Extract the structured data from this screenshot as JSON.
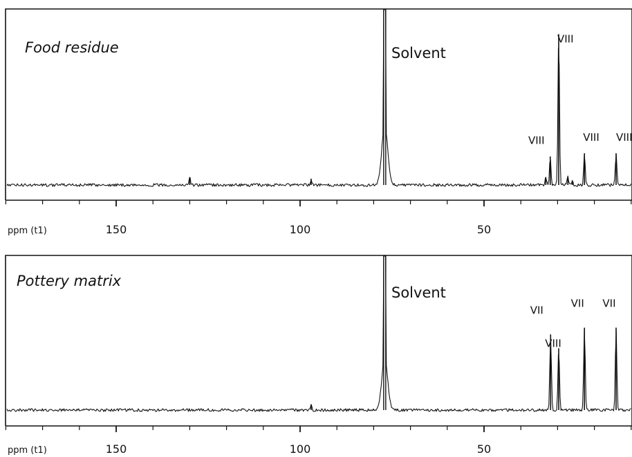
{
  "chart_data": [
    {
      "type": "line",
      "title": "Food residue",
      "xlabel": "ppm (t1)",
      "x_reversed": true,
      "xlim": [
        185,
        -4
      ],
      "x_ticks": [
        150,
        100,
        50
      ],
      "solvent": {
        "label": "Solvent",
        "ppm": 77
      },
      "peaks": [
        {
          "ppm": 32.0,
          "height": 0.18,
          "label": "VIII"
        },
        {
          "ppm": 29.7,
          "height": 0.95,
          "label": "VIII"
        },
        {
          "ppm": 22.7,
          "height": 0.2,
          "label": "VIII"
        },
        {
          "ppm": 14.1,
          "height": 0.2,
          "label": "VIII"
        },
        {
          "ppm": 33.2,
          "height": 0.05,
          "label": ""
        },
        {
          "ppm": 27.2,
          "height": 0.05,
          "label": ""
        },
        {
          "ppm": 26.0,
          "height": 0.03,
          "label": ""
        },
        {
          "ppm": 130.0,
          "height": 0.05,
          "label": ""
        },
        {
          "ppm": 97.0,
          "height": 0.04,
          "label": ""
        }
      ]
    },
    {
      "type": "line",
      "title": "Pottery matrix",
      "xlabel": "ppm (t1)",
      "x_reversed": true,
      "xlim": [
        185,
        -4
      ],
      "x_ticks": [
        150,
        100,
        50
      ],
      "solvent": {
        "label": "Solvent",
        "ppm": 77
      },
      "peaks": [
        {
          "ppm": 31.9,
          "height": 0.55,
          "label": "VII"
        },
        {
          "ppm": 29.7,
          "height": 0.45,
          "label": "VIII"
        },
        {
          "ppm": 22.7,
          "height": 0.6,
          "label": "VII"
        },
        {
          "ppm": 14.1,
          "height": 0.6,
          "label": "VII"
        },
        {
          "ppm": 97.0,
          "height": 0.04,
          "label": ""
        }
      ]
    }
  ]
}
